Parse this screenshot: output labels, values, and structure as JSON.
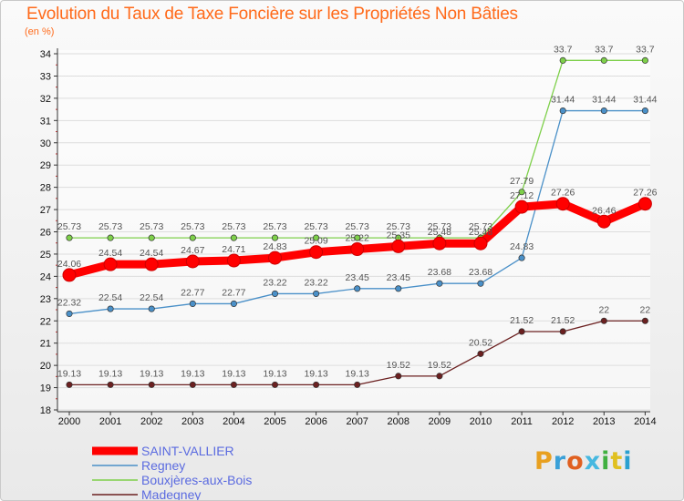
{
  "title": "Evolution du Taux de Taxe Foncière sur les Propriétés Non Bâties",
  "subtitle": "(en %)",
  "logo_text": "Proxiti",
  "colors": {
    "title": "#ff6a1a",
    "axis": "#333333",
    "grid": "#dddddd",
    "legend_text": "#5b6be0"
  },
  "chart_data": {
    "type": "line",
    "title": "Evolution du Taux de Taxe Foncière sur les Propriétés Non Bâties",
    "ylabel": "(en %)",
    "xlabel": "",
    "ylim": [
      18,
      34
    ],
    "yticks": [
      18,
      19,
      20,
      21,
      22,
      23,
      24,
      25,
      26,
      27,
      28,
      29,
      30,
      31,
      32,
      33,
      34
    ],
    "x": [
      "2000",
      "2001",
      "2002",
      "2003",
      "2004",
      "2005",
      "2006",
      "2007",
      "2008",
      "2009",
      "2010",
      "2011",
      "2012",
      "2013",
      "2014"
    ],
    "grid": true,
    "legend_position": "bottom-left",
    "series": [
      {
        "name": "SAINT-VALLIER",
        "color": "#ff0000",
        "values": [
          24.06,
          24.54,
          24.54,
          24.67,
          24.71,
          24.83,
          25.09,
          25.22,
          25.35,
          25.48,
          25.48,
          27.12,
          27.26,
          26.46,
          27.26
        ]
      },
      {
        "name": "Regney",
        "color": "#4a90c8",
        "values": [
          22.32,
          22.54,
          22.54,
          22.77,
          22.77,
          23.22,
          23.22,
          23.45,
          23.45,
          23.68,
          23.68,
          24.83,
          31.44,
          31.44,
          31.44
        ]
      },
      {
        "name": "Bouxjères-aux-Bois",
        "color": "#7ed04a",
        "values": [
          25.73,
          25.73,
          25.73,
          25.73,
          25.73,
          25.73,
          25.73,
          25.73,
          25.73,
          25.73,
          25.73,
          27.79,
          33.7,
          33.7,
          33.7
        ]
      },
      {
        "name": "Madegney",
        "color": "#6b2020",
        "values": [
          19.13,
          19.13,
          19.13,
          19.13,
          19.13,
          19.13,
          19.13,
          19.13,
          19.52,
          19.52,
          20.52,
          21.52,
          21.52,
          22,
          22
        ]
      }
    ]
  }
}
